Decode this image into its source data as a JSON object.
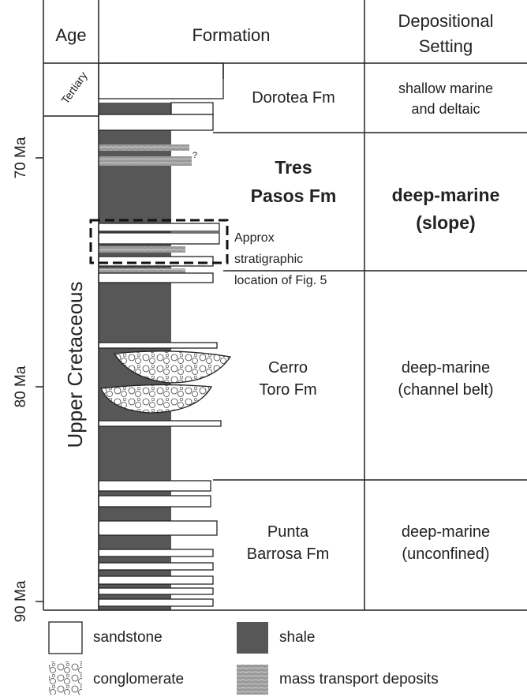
{
  "header": {
    "age": "Age",
    "formation": "Formation",
    "setting": [
      "Depositional",
      "Setting"
    ]
  },
  "age": {
    "tertiary": "Tertiary",
    "upper_cretaceous": "Upper Cretaceous",
    "ticks": [
      "70 Ma",
      "80 Ma",
      "90 Ma"
    ]
  },
  "formations": [
    {
      "name": [
        "Dorotea Fm"
      ],
      "setting": [
        "shallow marine",
        "and deltaic"
      ]
    },
    {
      "name": [
        "Tres",
        "Pasos Fm"
      ],
      "setting": [
        "deep-marine",
        "(slope)"
      ]
    },
    {
      "name": [
        "Cerro",
        "Toro Fm"
      ],
      "setting": [
        "deep-marine",
        "(channel belt)"
      ]
    },
    {
      "name": [
        "Punta",
        "Barrosa Fm"
      ],
      "setting": [
        "deep-marine",
        "(unconfined)"
      ]
    }
  ],
  "annotation": {
    "lines": [
      "Approx",
      "stratigraphic",
      "location of Fig. 5"
    ],
    "query": "?"
  },
  "legend": [
    "sandstone",
    "shale",
    "conglomerate",
    "mass transport deposits"
  ]
}
